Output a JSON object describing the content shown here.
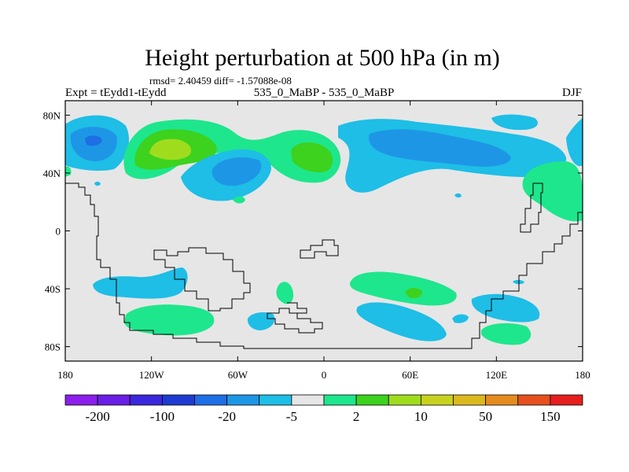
{
  "title": "Height perturbation at 500 hPa (in m)",
  "stats_text": "rmsd= 2.40459  diff= -1.57088e-08",
  "left_label": "Expt = tEydd1-tEydd",
  "center_label": "535_0_MaBP - 535_0_MaBP",
  "right_label": "DJF",
  "y_ticks": [
    "80N",
    "40N",
    "0",
    "40S",
    "80S"
  ],
  "x_ticks": [
    "180",
    "120W",
    "60W",
    "0",
    "60E",
    "120E",
    "180"
  ],
  "colorbar": {
    "colors": [
      "#8c1eeb",
      "#6a1ee6",
      "#3c28dc",
      "#1e3cd2",
      "#1e6ee6",
      "#1e96e6",
      "#1ebee6",
      "#e6e6e6",
      "#1ee68c",
      "#3cd21e",
      "#a0dc1e",
      "#c8d21e",
      "#dcb91e",
      "#e68c1e",
      "#e6501e",
      "#e61e1e"
    ],
    "labels": [
      "-200",
      "-100",
      "-20",
      "-5",
      "2",
      "10",
      "50",
      "150"
    ]
  },
  "palette": {
    "land_bg": "#e6e6e6",
    "cyan": "#1ebee6",
    "blue": "#1e96e6",
    "dark_blue": "#1e6ee6",
    "green": "#1ee68c",
    "bright_green": "#3cd21e",
    "lime": "#a0dc1e"
  }
}
